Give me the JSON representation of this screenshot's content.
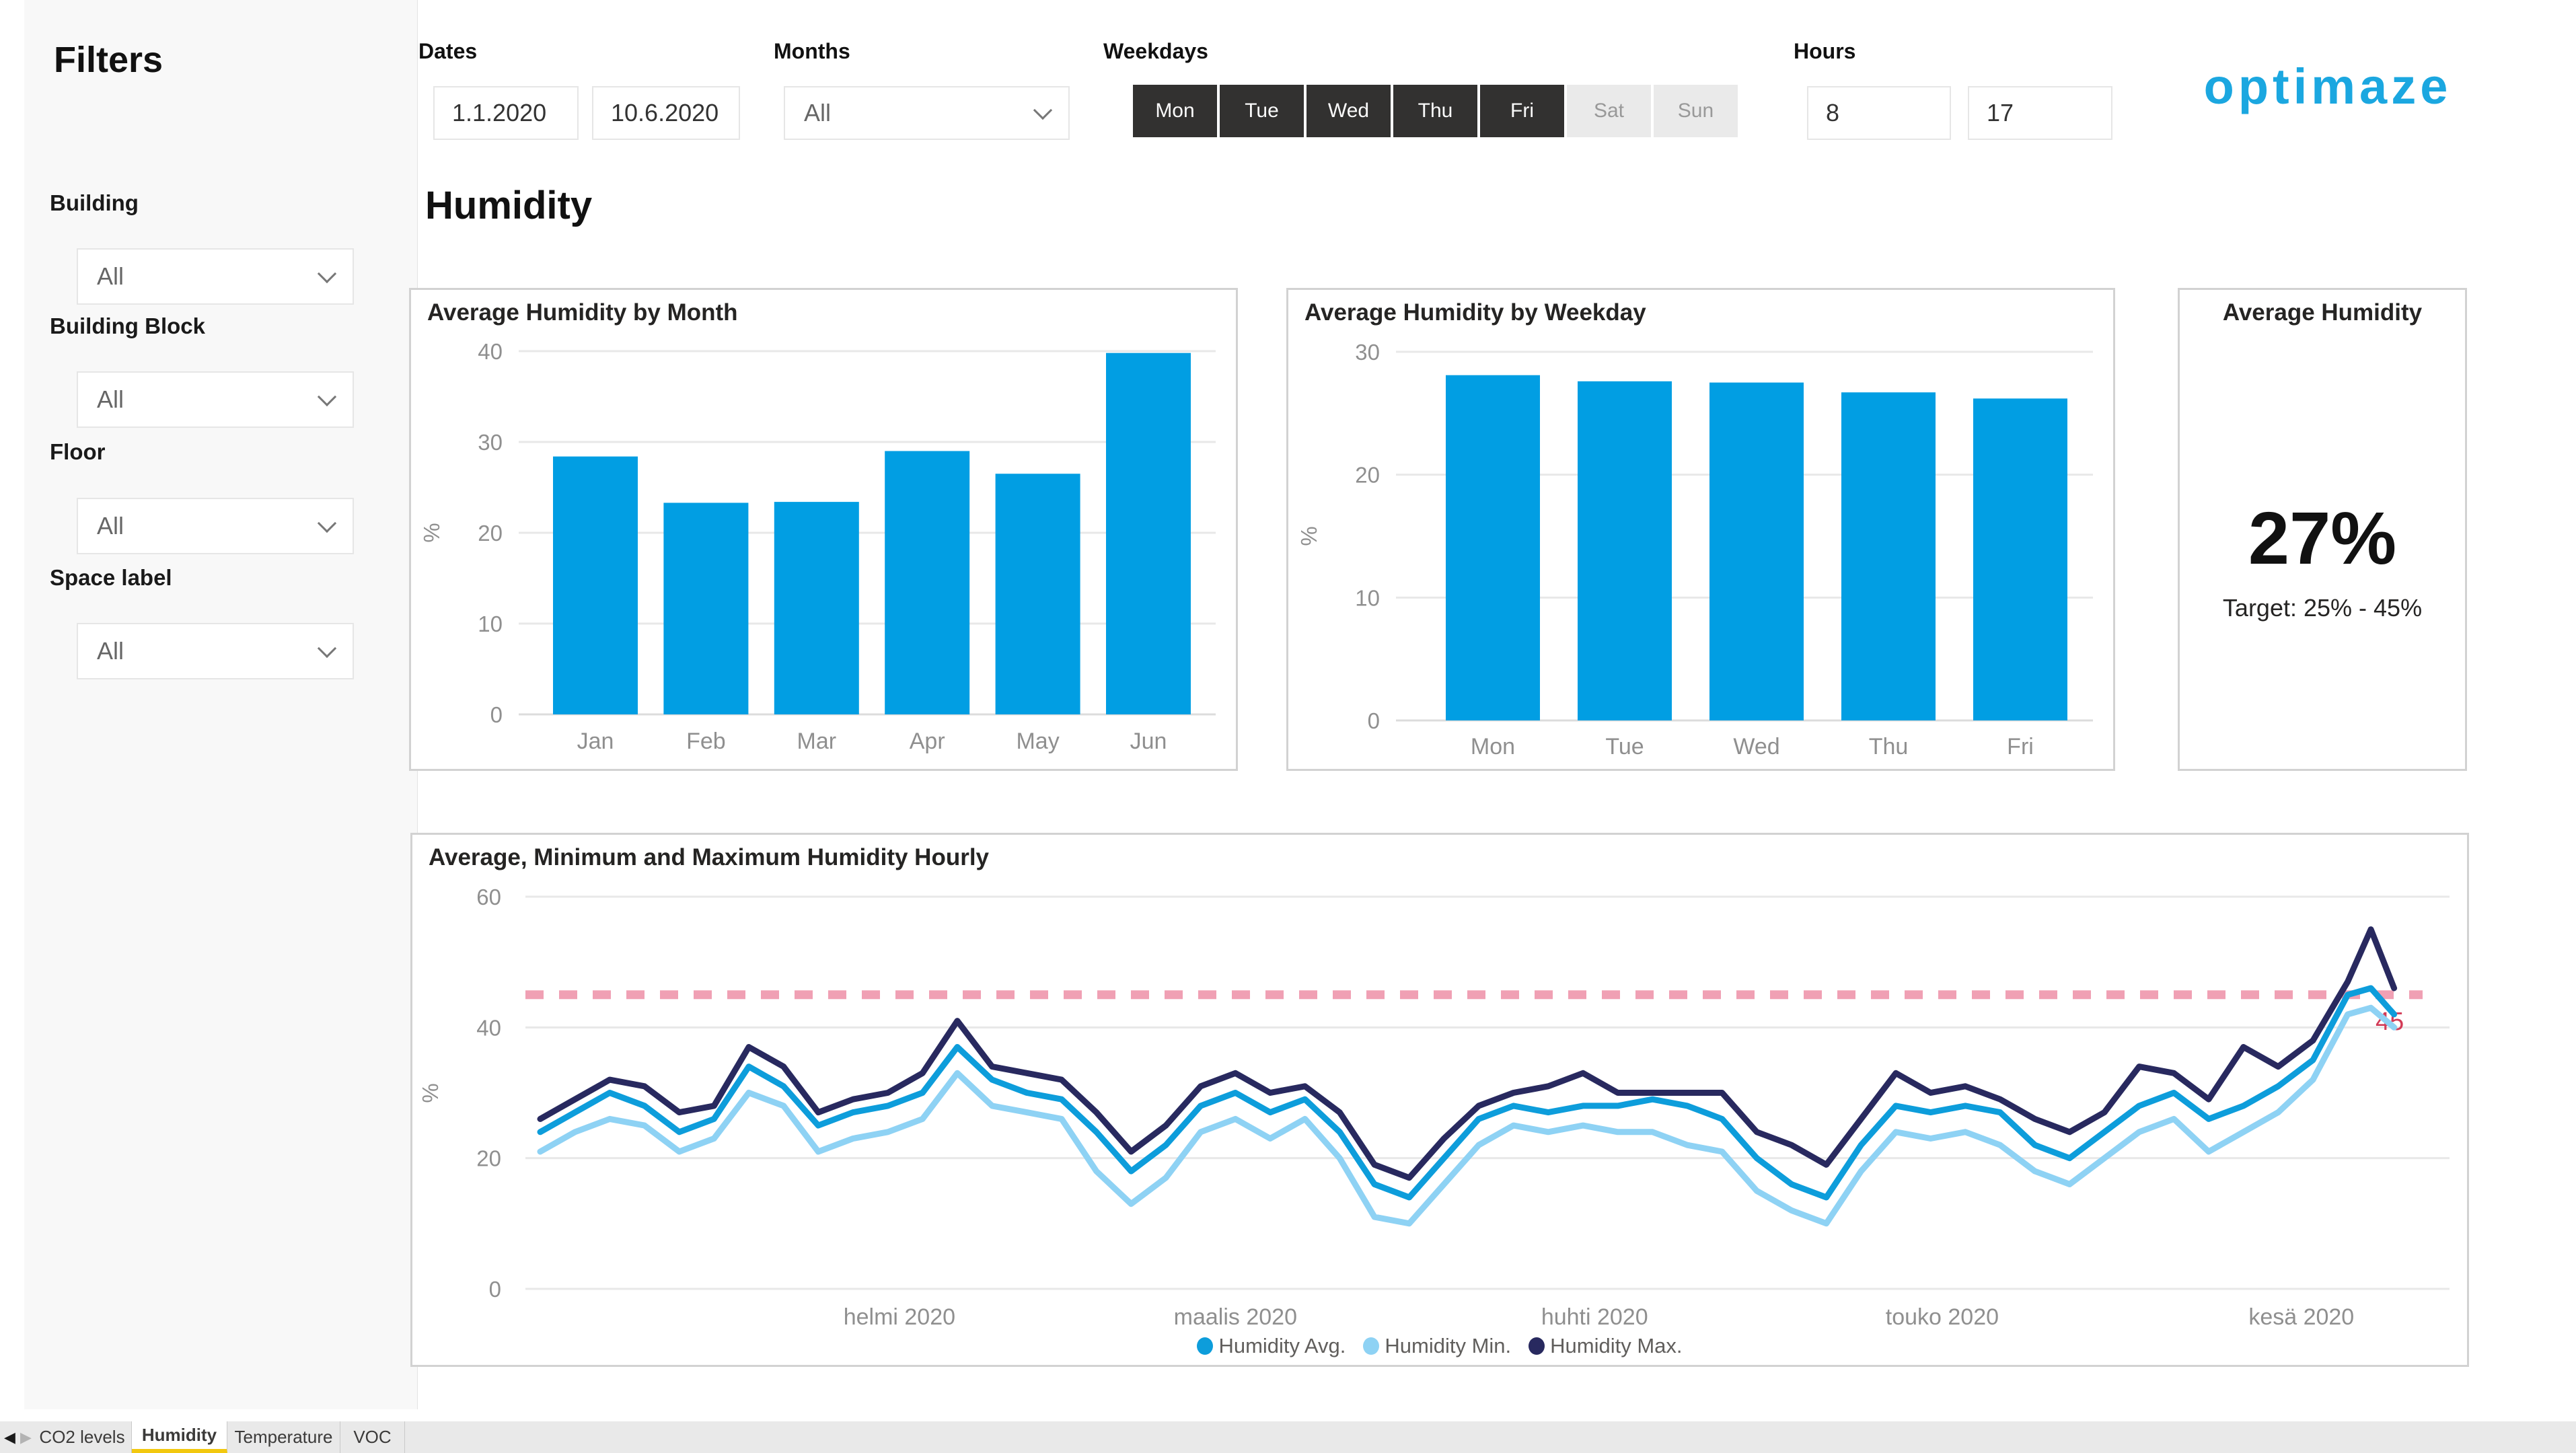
{
  "page": {
    "title": "Humidity"
  },
  "logo": {
    "text": "optimaze",
    "color": "#1ba7e0"
  },
  "sidebar": {
    "title": "Filters",
    "filters": [
      {
        "label": "Building",
        "value": "All"
      },
      {
        "label": "Building Block",
        "value": "All"
      },
      {
        "label": "Floor",
        "value": "All"
      },
      {
        "label": "Space label",
        "value": "All"
      }
    ]
  },
  "filters_bar": {
    "dates": {
      "label": "Dates",
      "start": "1.1.2020",
      "end": "10.6.2020"
    },
    "months": {
      "label": "Months",
      "value": "All"
    },
    "weekdays": {
      "label": "Weekdays",
      "buttons": [
        {
          "label": "Mon",
          "active": true
        },
        {
          "label": "Tue",
          "active": true
        },
        {
          "label": "Wed",
          "active": true
        },
        {
          "label": "Thu",
          "active": true
        },
        {
          "label": "Fri",
          "active": true
        },
        {
          "label": "Sat",
          "active": false
        },
        {
          "label": "Sun",
          "active": false
        }
      ]
    },
    "hours": {
      "label": "Hours",
      "start": "8",
      "end": "17"
    }
  },
  "cards": {
    "kpi": {
      "title": "Average Humidity",
      "value": "27%",
      "target": "Target: 25% - 45%"
    }
  },
  "chart_data": [
    {
      "id": "month",
      "type": "bar",
      "title": "Average Humidity by Month",
      "categories": [
        "Jan",
        "Feb",
        "Mar",
        "Apr",
        "May",
        "Jun"
      ],
      "values": [
        28.4,
        23.3,
        23.4,
        29.0,
        26.5,
        39.8
      ],
      "xlabel": "",
      "ylabel": "%",
      "ylim": [
        0,
        40
      ],
      "yticks": [
        0,
        10,
        20,
        30,
        40
      ],
      "grid": true,
      "bar_color": "#019ee3"
    },
    {
      "id": "weekday",
      "type": "bar",
      "title": "Average Humidity by Weekday",
      "categories": [
        "Mon",
        "Tue",
        "Wed",
        "Thu",
        "Fri"
      ],
      "values": [
        28.1,
        27.6,
        27.5,
        26.7,
        26.2
      ],
      "xlabel": "",
      "ylabel": "%",
      "ylim": [
        0,
        30
      ],
      "yticks": [
        0,
        10,
        20,
        30
      ],
      "grid": true,
      "bar_color": "#019ee3"
    },
    {
      "id": "hourly",
      "type": "line",
      "title": "Average, Minimum and Maximum Humidity Hourly",
      "xlabel": "",
      "ylabel": "%",
      "ylim": [
        0,
        60
      ],
      "yticks": [
        0,
        20,
        40,
        60
      ],
      "grid": true,
      "legend_position": "bottom",
      "x_axis_labels": [
        "helmi 2020",
        "maalis 2020",
        "huhti 2020",
        "touko 2020",
        "kesä 2020"
      ],
      "x_label_days": [
        31,
        60,
        91,
        121,
        152
      ],
      "x_unit": "days from 1.1.2020",
      "reference_line": {
        "value": 45,
        "label": "45",
        "color": "#f0a0b4",
        "label_color": "#d23b57"
      },
      "x_days": [
        0,
        3,
        6,
        9,
        12,
        15,
        18,
        21,
        24,
        27,
        30,
        33,
        36,
        39,
        42,
        45,
        48,
        51,
        54,
        57,
        60,
        63,
        66,
        69,
        72,
        75,
        78,
        81,
        84,
        87,
        90,
        93,
        96,
        99,
        102,
        105,
        108,
        111,
        114,
        117,
        120,
        123,
        126,
        129,
        132,
        135,
        138,
        141,
        144,
        147,
        150,
        153,
        156,
        158,
        160
      ],
      "series": [
        {
          "name": "Humidity Avg.",
          "color": "#0d9ddb",
          "values": [
            24,
            27,
            30,
            28,
            24,
            26,
            34,
            31,
            25,
            27,
            28,
            30,
            37,
            32,
            30,
            29,
            24,
            18,
            22,
            28,
            30,
            27,
            29,
            24,
            16,
            14,
            20,
            26,
            28,
            27,
            28,
            28,
            29,
            28,
            26,
            20,
            16,
            14,
            22,
            28,
            27,
            28,
            27,
            22,
            20,
            24,
            28,
            30,
            26,
            28,
            31,
            35,
            45,
            46,
            42
          ]
        },
        {
          "name": "Humidity Min.",
          "color": "#8ed2f4",
          "values": [
            21,
            24,
            26,
            25,
            21,
            23,
            30,
            28,
            21,
            23,
            24,
            26,
            33,
            28,
            27,
            26,
            18,
            13,
            17,
            24,
            26,
            23,
            26,
            20,
            11,
            10,
            16,
            22,
            25,
            24,
            25,
            24,
            24,
            22,
            21,
            15,
            12,
            10,
            18,
            24,
            23,
            24,
            22,
            18,
            16,
            20,
            24,
            26,
            21,
            24,
            27,
            32,
            42,
            43,
            40
          ]
        },
        {
          "name": "Humidity Max.",
          "color": "#28295f",
          "values": [
            26,
            29,
            32,
            31,
            27,
            28,
            37,
            34,
            27,
            29,
            30,
            33,
            41,
            34,
            33,
            32,
            27,
            21,
            25,
            31,
            33,
            30,
            31,
            27,
            19,
            17,
            23,
            28,
            30,
            31,
            33,
            30,
            30,
            30,
            30,
            24,
            22,
            19,
            26,
            33,
            30,
            31,
            29,
            26,
            24,
            27,
            34,
            33,
            29,
            37,
            34,
            38,
            47,
            55,
            46
          ]
        }
      ]
    }
  ],
  "tabs": {
    "nav": {
      "prev": "◀",
      "next": "▶"
    },
    "items": [
      {
        "label": "CO2 levels",
        "active": false
      },
      {
        "label": "Humidity",
        "active": true
      },
      {
        "label": "Temperature",
        "active": false
      },
      {
        "label": "VOC",
        "active": false
      }
    ]
  }
}
